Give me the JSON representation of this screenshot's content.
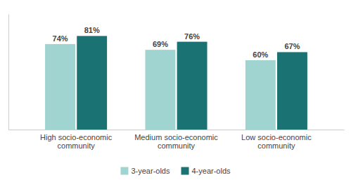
{
  "chart_data": {
    "type": "bar",
    "categories": [
      "High socio-economic community",
      "Medium socio-economic community",
      "Low socio-economic community"
    ],
    "series": [
      {
        "name": "3-year-olds",
        "color": "#9fd4d0",
        "values": [
          74,
          69,
          60
        ],
        "value_labels": [
          "74%",
          "69%",
          "60%"
        ]
      },
      {
        "name": "4-year-olds",
        "color": "#1a7272",
        "values": [
          81,
          76,
          67
        ],
        "value_labels": [
          "81%",
          "76%",
          "67%"
        ]
      }
    ],
    "ylim": [
      0,
      100
    ],
    "yticks": [],
    "data_labels": true,
    "tick_labels": "x",
    "legend": "bottom"
  }
}
